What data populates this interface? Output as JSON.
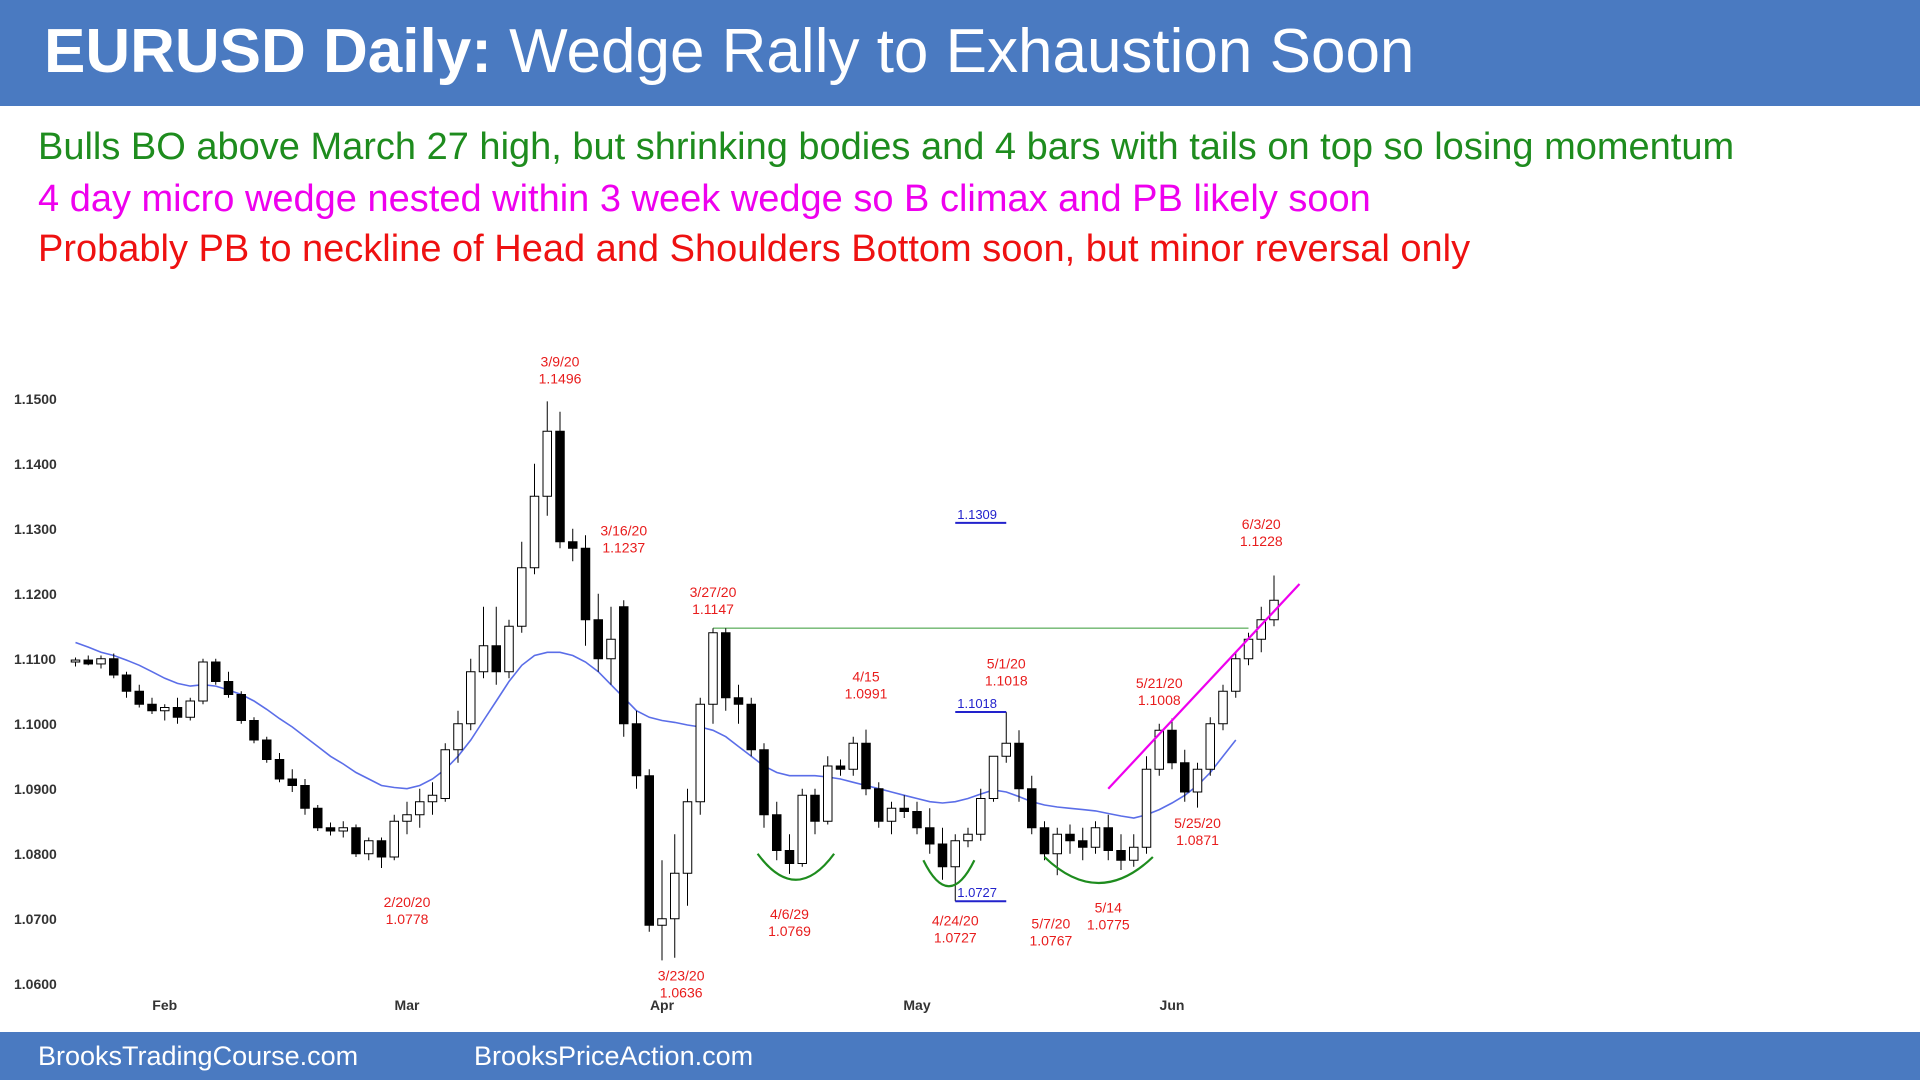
{
  "header": {
    "title_bold": "EURUSD Daily:",
    "title_rest": "Wedge Rally to Exhaustion Soon"
  },
  "commentary": {
    "line1": "Bulls BO above March 27 high, but shrinking bodies and 4 bars with tails on top so losing momentum",
    "line2": "4 day micro wedge nested within 3 week wedge so B climax and PB likely soon",
    "line3": "Probably PB to neckline of Head and Shoulders Bottom soon, but minor reversal only",
    "color1": "#1e8c1e",
    "color2": "#ee00ee",
    "color3": "#ee1111"
  },
  "footer": {
    "left": "BrooksTradingCourse.com",
    "right": "BrooksPriceAction.com"
  },
  "chart_data": {
    "type": "candlestick",
    "title": "",
    "xlabel": "",
    "ylabel": "",
    "ylim": [
      1.0575,
      1.1575
    ],
    "y_ticks": [
      "1.1500",
      "1.1400",
      "1.1300",
      "1.1200",
      "1.1100",
      "1.1000",
      "1.0900",
      "1.0800",
      "1.0700",
      "1.0600"
    ],
    "x_ticks": [
      {
        "label": "Feb",
        "bar": 7
      },
      {
        "label": "Mar",
        "bar": 26
      },
      {
        "label": "Apr",
        "bar": 46
      },
      {
        "label": "May",
        "bar": 66
      },
      {
        "label": "Jun",
        "bar": 86
      }
    ],
    "candles": [
      [
        1.1095,
        1.1102,
        1.1088,
        1.1098
      ],
      [
        1.1098,
        1.1105,
        1.109,
        1.1092
      ],
      [
        1.1092,
        1.1105,
        1.1085,
        1.11
      ],
      [
        1.11,
        1.1108,
        1.107,
        1.1075
      ],
      [
        1.1075,
        1.108,
        1.104,
        1.105
      ],
      [
        1.105,
        1.106,
        1.1025,
        1.103
      ],
      [
        1.103,
        1.104,
        1.1015,
        1.102
      ],
      [
        1.102,
        1.103,
        1.1005,
        1.1025
      ],
      [
        1.1025,
        1.104,
        1.1,
        1.101
      ],
      [
        1.101,
        1.104,
        1.1005,
        1.1035
      ],
      [
        1.1035,
        1.11,
        1.103,
        1.1095
      ],
      [
        1.1095,
        1.11,
        1.106,
        1.1065
      ],
      [
        1.1065,
        1.108,
        1.104,
        1.1045
      ],
      [
        1.1045,
        1.105,
        1.1,
        1.1005
      ],
      [
        1.1005,
        1.101,
        1.097,
        1.0975
      ],
      [
        1.0975,
        1.098,
        1.094,
        1.0945
      ],
      [
        1.0945,
        1.0955,
        1.091,
        1.0915
      ],
      [
        1.0915,
        1.093,
        1.0895,
        1.0905
      ],
      [
        1.0905,
        1.0915,
        1.086,
        1.087
      ],
      [
        1.087,
        1.0875,
        1.0835,
        1.084
      ],
      [
        1.084,
        1.0848,
        1.0828,
        1.0835
      ],
      [
        1.0835,
        1.085,
        1.0825,
        1.084
      ],
      [
        1.084,
        1.0845,
        1.0795,
        1.08
      ],
      [
        1.08,
        1.0825,
        1.079,
        1.082
      ],
      [
        1.082,
        1.0825,
        1.0778,
        1.0795
      ],
      [
        1.0795,
        1.086,
        1.079,
        1.085
      ],
      [
        1.085,
        1.088,
        1.083,
        1.086
      ],
      [
        1.086,
        1.09,
        1.084,
        1.088
      ],
      [
        1.088,
        1.091,
        1.086,
        1.089
      ],
      [
        1.0885,
        1.097,
        1.088,
        1.096
      ],
      [
        1.096,
        1.102,
        1.094,
        1.1
      ],
      [
        1.1,
        1.11,
        1.099,
        1.108
      ],
      [
        1.108,
        1.118,
        1.107,
        1.112
      ],
      [
        1.112,
        1.118,
        1.106,
        1.108
      ],
      [
        1.108,
        1.116,
        1.107,
        1.115
      ],
      [
        1.115,
        1.128,
        1.114,
        1.124
      ],
      [
        1.124,
        1.14,
        1.123,
        1.135
      ],
      [
        1.135,
        1.1496,
        1.132,
        1.145
      ],
      [
        1.145,
        1.148,
        1.127,
        1.128
      ],
      [
        1.128,
        1.13,
        1.125,
        1.127
      ],
      [
        1.127,
        1.129,
        1.112,
        1.116
      ],
      [
        1.116,
        1.12,
        1.108,
        1.11
      ],
      [
        1.11,
        1.118,
        1.106,
        1.113
      ],
      [
        1.118,
        1.119,
        1.098,
        1.1
      ],
      [
        1.1,
        1.102,
        1.09,
        1.092
      ],
      [
        1.092,
        1.093,
        1.068,
        1.069
      ],
      [
        1.069,
        1.079,
        1.0636,
        1.07
      ],
      [
        1.07,
        1.083,
        1.064,
        1.077
      ],
      [
        1.077,
        1.09,
        1.072,
        1.088
      ],
      [
        1.088,
        1.104,
        1.086,
        1.103
      ],
      [
        1.103,
        1.1147,
        1.1,
        1.114
      ],
      [
        1.114,
        1.1147,
        1.102,
        1.104
      ],
      [
        1.104,
        1.106,
        1.1,
        1.103
      ],
      [
        1.103,
        1.104,
        1.095,
        1.096
      ],
      [
        1.096,
        1.097,
        1.084,
        1.086
      ],
      [
        1.086,
        1.088,
        1.079,
        1.0805
      ],
      [
        1.0805,
        1.083,
        1.0769,
        1.0785
      ],
      [
        1.0785,
        1.09,
        1.078,
        1.089
      ],
      [
        1.089,
        1.09,
        1.083,
        1.085
      ],
      [
        1.085,
        1.095,
        1.0845,
        1.0935
      ],
      [
        1.0935,
        1.0945,
        1.092,
        1.093
      ],
      [
        1.093,
        1.098,
        1.092,
        1.097
      ],
      [
        1.097,
        1.0991,
        1.089,
        1.09
      ],
      [
        1.09,
        1.091,
        1.084,
        1.085
      ],
      [
        1.085,
        1.088,
        1.083,
        1.087
      ],
      [
        1.087,
        1.089,
        1.0855,
        1.0865
      ],
      [
        1.0865,
        1.088,
        1.083,
        1.084
      ],
      [
        1.084,
        1.087,
        1.08,
        1.0815
      ],
      [
        1.0815,
        1.084,
        1.076,
        1.078
      ],
      [
        1.078,
        1.083,
        1.0727,
        1.082
      ],
      [
        1.082,
        1.084,
        1.081,
        1.083
      ],
      [
        1.083,
        1.09,
        1.082,
        1.0885
      ],
      [
        1.0885,
        1.095,
        1.088,
        1.095
      ],
      [
        1.095,
        1.1018,
        1.094,
        1.097
      ],
      [
        1.097,
        1.099,
        1.088,
        1.09
      ],
      [
        1.09,
        1.092,
        1.083,
        1.084
      ],
      [
        1.084,
        1.085,
        1.079,
        1.08
      ],
      [
        1.08,
        1.084,
        1.0767,
        1.083
      ],
      [
        1.083,
        1.0845,
        1.08,
        1.082
      ],
      [
        1.082,
        1.084,
        1.079,
        1.081
      ],
      [
        1.081,
        1.085,
        1.08,
        1.084
      ],
      [
        1.084,
        1.086,
        1.079,
        1.0805
      ],
      [
        1.0805,
        1.083,
        1.0775,
        1.079
      ],
      [
        1.079,
        1.083,
        1.078,
        1.081
      ],
      [
        1.081,
        1.095,
        1.08,
        1.093
      ],
      [
        1.093,
        1.1,
        1.092,
        1.099
      ],
      [
        1.099,
        1.1008,
        1.093,
        1.094
      ],
      [
        1.094,
        1.096,
        1.088,
        1.0895
      ],
      [
        1.0895,
        1.094,
        1.0871,
        1.093
      ],
      [
        1.093,
        1.101,
        1.092,
        1.1
      ],
      [
        1.1,
        1.106,
        1.099,
        1.105
      ],
      [
        1.105,
        1.111,
        1.104,
        1.11
      ],
      [
        1.11,
        1.114,
        1.109,
        1.113
      ],
      [
        1.113,
        1.118,
        1.111,
        1.116
      ],
      [
        1.116,
        1.1228,
        1.115,
        1.119
      ]
    ],
    "moving_average": [
      1.1125,
      1.1118,
      1.111,
      1.1105,
      1.1098,
      1.109,
      1.108,
      1.107,
      1.1062,
      1.1058,
      1.106,
      1.1058,
      1.1052,
      1.1045,
      1.1035,
      1.1022,
      1.1008,
      1.0995,
      1.098,
      1.0965,
      1.095,
      1.0938,
      1.0925,
      1.0915,
      1.0905,
      1.0902,
      1.09,
      1.0905,
      1.0915,
      1.093,
      1.095,
      1.0975,
      1.1005,
      1.1035,
      1.1065,
      1.109,
      1.1105,
      1.111,
      1.111,
      1.1105,
      1.1095,
      1.108,
      1.106,
      1.104,
      1.102,
      1.101,
      1.1005,
      1.1002,
      1.0998,
      1.0995,
      1.099,
      1.098,
      1.0965,
      1.095,
      1.0935,
      1.0925,
      1.092,
      1.092,
      1.092,
      1.0918,
      1.0915,
      1.091,
      1.0905,
      1.09,
      1.0895,
      1.089,
      1.0885,
      1.088,
      1.0878,
      1.088,
      1.0885,
      1.0892,
      1.0898,
      1.0895,
      1.0888,
      1.088,
      1.0875,
      1.0872,
      1.087,
      1.0868,
      1.0866,
      1.0862,
      1.0858,
      1.0855,
      1.086,
      1.0868,
      1.0878,
      1.089,
      1.0905,
      1.0925,
      1.095,
      1.0975
    ],
    "ma_color": "#5b6ee8",
    "horizontal_lines": [
      {
        "price": 1.1147,
        "bar_from": 50,
        "bar_to": 92,
        "color": "#6bb56b"
      }
    ],
    "price_markers": [
      {
        "label": "1.1309",
        "price": 1.1309,
        "bar_from": 69,
        "bar_to": 73
      },
      {
        "label": "1.1018",
        "price": 1.1018,
        "bar_from": 69,
        "bar_to": 73
      },
      {
        "label": "1.0727",
        "price": 1.0727,
        "bar_from": 69,
        "bar_to": 73
      }
    ],
    "marker_color": "#2222cc",
    "wedge_line": {
      "bar_from": 81,
      "price_from": 1.09,
      "bar_to": 96,
      "price_to": 1.1215,
      "color": "#ee00ee"
    },
    "bottoms": [
      {
        "bar_from": 53.5,
        "bar_to": 59.5,
        "price": 1.08
      },
      {
        "bar_from": 66.5,
        "bar_to": 70.5,
        "price": 1.079
      },
      {
        "bar_from": 76,
        "bar_to": 84.5,
        "price": 1.0795
      }
    ],
    "bottom_color": "#1e8c1e",
    "annotations": [
      {
        "date": "3/9/20",
        "price_label": "1.1496",
        "bar": 38,
        "price": 1.155
      },
      {
        "date": "3/16/20",
        "price_label": "1.1237",
        "bar": 43,
        "price": 1.129
      },
      {
        "date": "3/27/20",
        "price_label": "1.1147",
        "bar": 50,
        "price": 1.1195
      },
      {
        "date": "4/15",
        "price_label": "1.0991",
        "bar": 62,
        "price": 1.1065
      },
      {
        "date": "5/1/20",
        "price_label": "1.1018",
        "bar": 73,
        "price": 1.1085
      },
      {
        "date": "5/21/20",
        "price_label": "1.1008",
        "bar": 85,
        "price": 1.1055
      },
      {
        "date": "6/3/20",
        "price_label": "1.1228",
        "bar": 93,
        "price": 1.13
      },
      {
        "date": "2/20/20",
        "price_label": "1.0778",
        "bar": 26,
        "price": 1.0718
      },
      {
        "date": "3/23/20",
        "price_label": "1.0636",
        "bar": 47.5,
        "price": 1.0605
      },
      {
        "date": "4/6/29",
        "price_label": "1.0769",
        "bar": 56,
        "price": 1.07
      },
      {
        "date": "4/24/20",
        "price_label": "1.0727",
        "bar": 69,
        "price": 1.069
      },
      {
        "date": "5/7/20",
        "price_label": "1.0767",
        "bar": 76.5,
        "price": 1.0685
      },
      {
        "date": "5/14",
        "price_label": "1.0775",
        "bar": 81,
        "price": 1.071
      },
      {
        "date": "5/25/20",
        "price_label": "1.0871",
        "bar": 88,
        "price": 1.084
      }
    ],
    "annotation_color": "#e81c1c"
  }
}
